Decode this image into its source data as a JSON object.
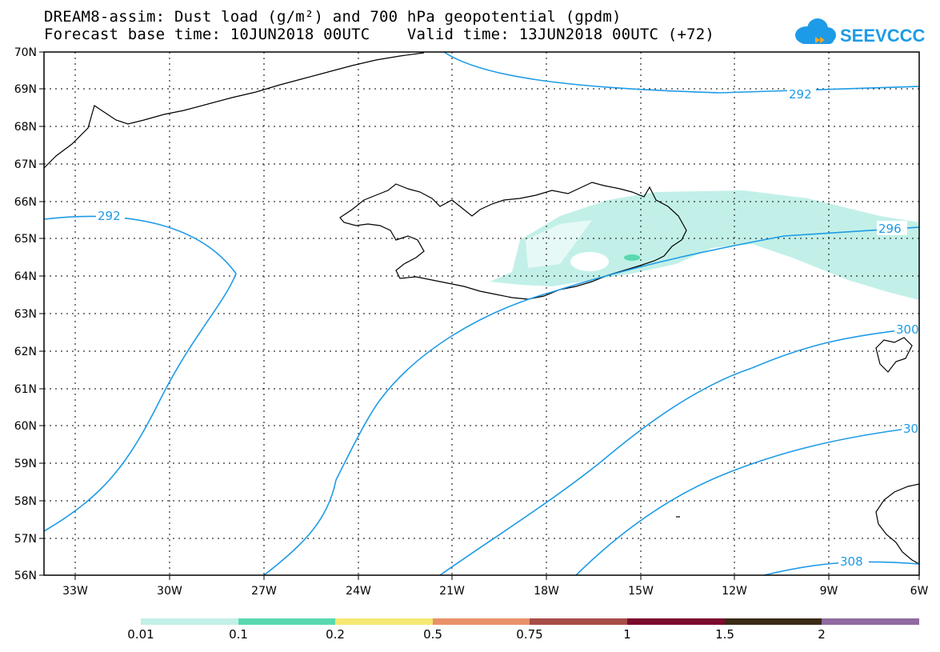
{
  "header": {
    "title_line1": "DREAM8-assim: Dust load (g/m²) and 700 hPa geopotential (gpdm)",
    "title_line2": "Forecast base time: 10JUN2018 00UTC    Valid time: 13JUN2018 00UTC (+72)",
    "logo_text": "SEEVCCC",
    "logo_icon": "cloud-icon"
  },
  "map": {
    "lat_labels": [
      "70N",
      "69N",
      "68N",
      "67N",
      "66N",
      "65N",
      "64N",
      "63N",
      "62N",
      "61N",
      "60N",
      "59N",
      "58N",
      "57N",
      "56N"
    ],
    "lon_labels": [
      "33W",
      "30W",
      "27W",
      "24W",
      "21W",
      "18W",
      "15W",
      "12W",
      "9W",
      "6W"
    ],
    "contour_labels": [
      "292",
      "292",
      "296",
      "300",
      "30",
      "308"
    ],
    "contour_color": "#1e9be6",
    "dust_color": "#c2f0e8"
  },
  "legend": {
    "labels": [
      "0.01",
      "0.1",
      "0.2",
      "0.5",
      "0.75",
      "1",
      "1.5",
      "2"
    ],
    "colors": [
      "#c2f0e8",
      "#5ad9b0",
      "#f5e873",
      "#e8916a",
      "#a64d48",
      "#7a0a2d",
      "#3a2a17",
      "#8f6aa0"
    ]
  }
}
